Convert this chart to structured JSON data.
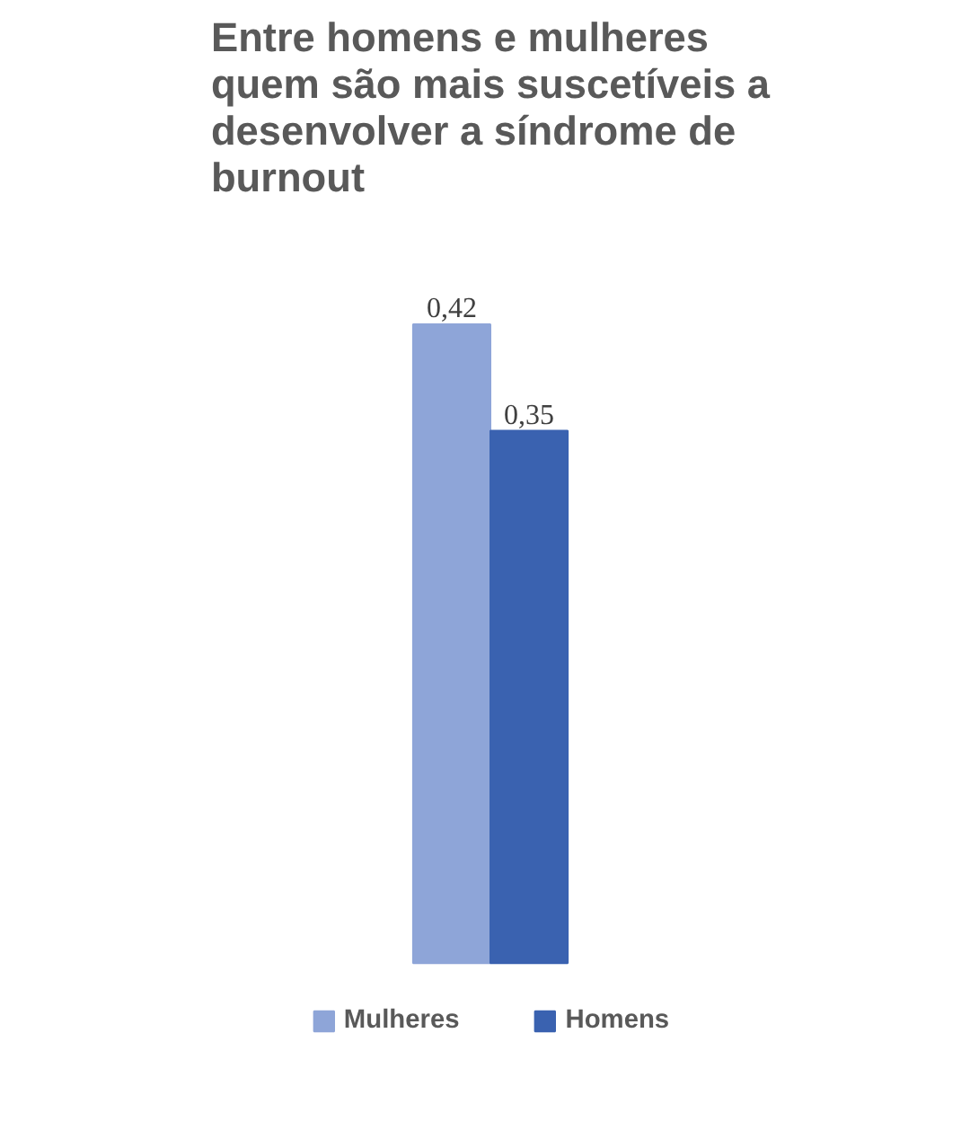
{
  "chart_data": {
    "type": "bar",
    "title": "Entre homens e mulheres quem são mais suscetíveis a desenvolver a síndrome de burnout",
    "categories": [
      null
    ],
    "series": [
      {
        "name": "Mulheres",
        "color": "#8ea5d8",
        "values": [
          0.42
        ],
        "value_labels": [
          "0,42"
        ]
      },
      {
        "name": "Homens",
        "color": "#3a62b0",
        "values": [
          0.35
        ],
        "value_labels": [
          "0,35"
        ]
      }
    ],
    "legend": "bottom"
  }
}
